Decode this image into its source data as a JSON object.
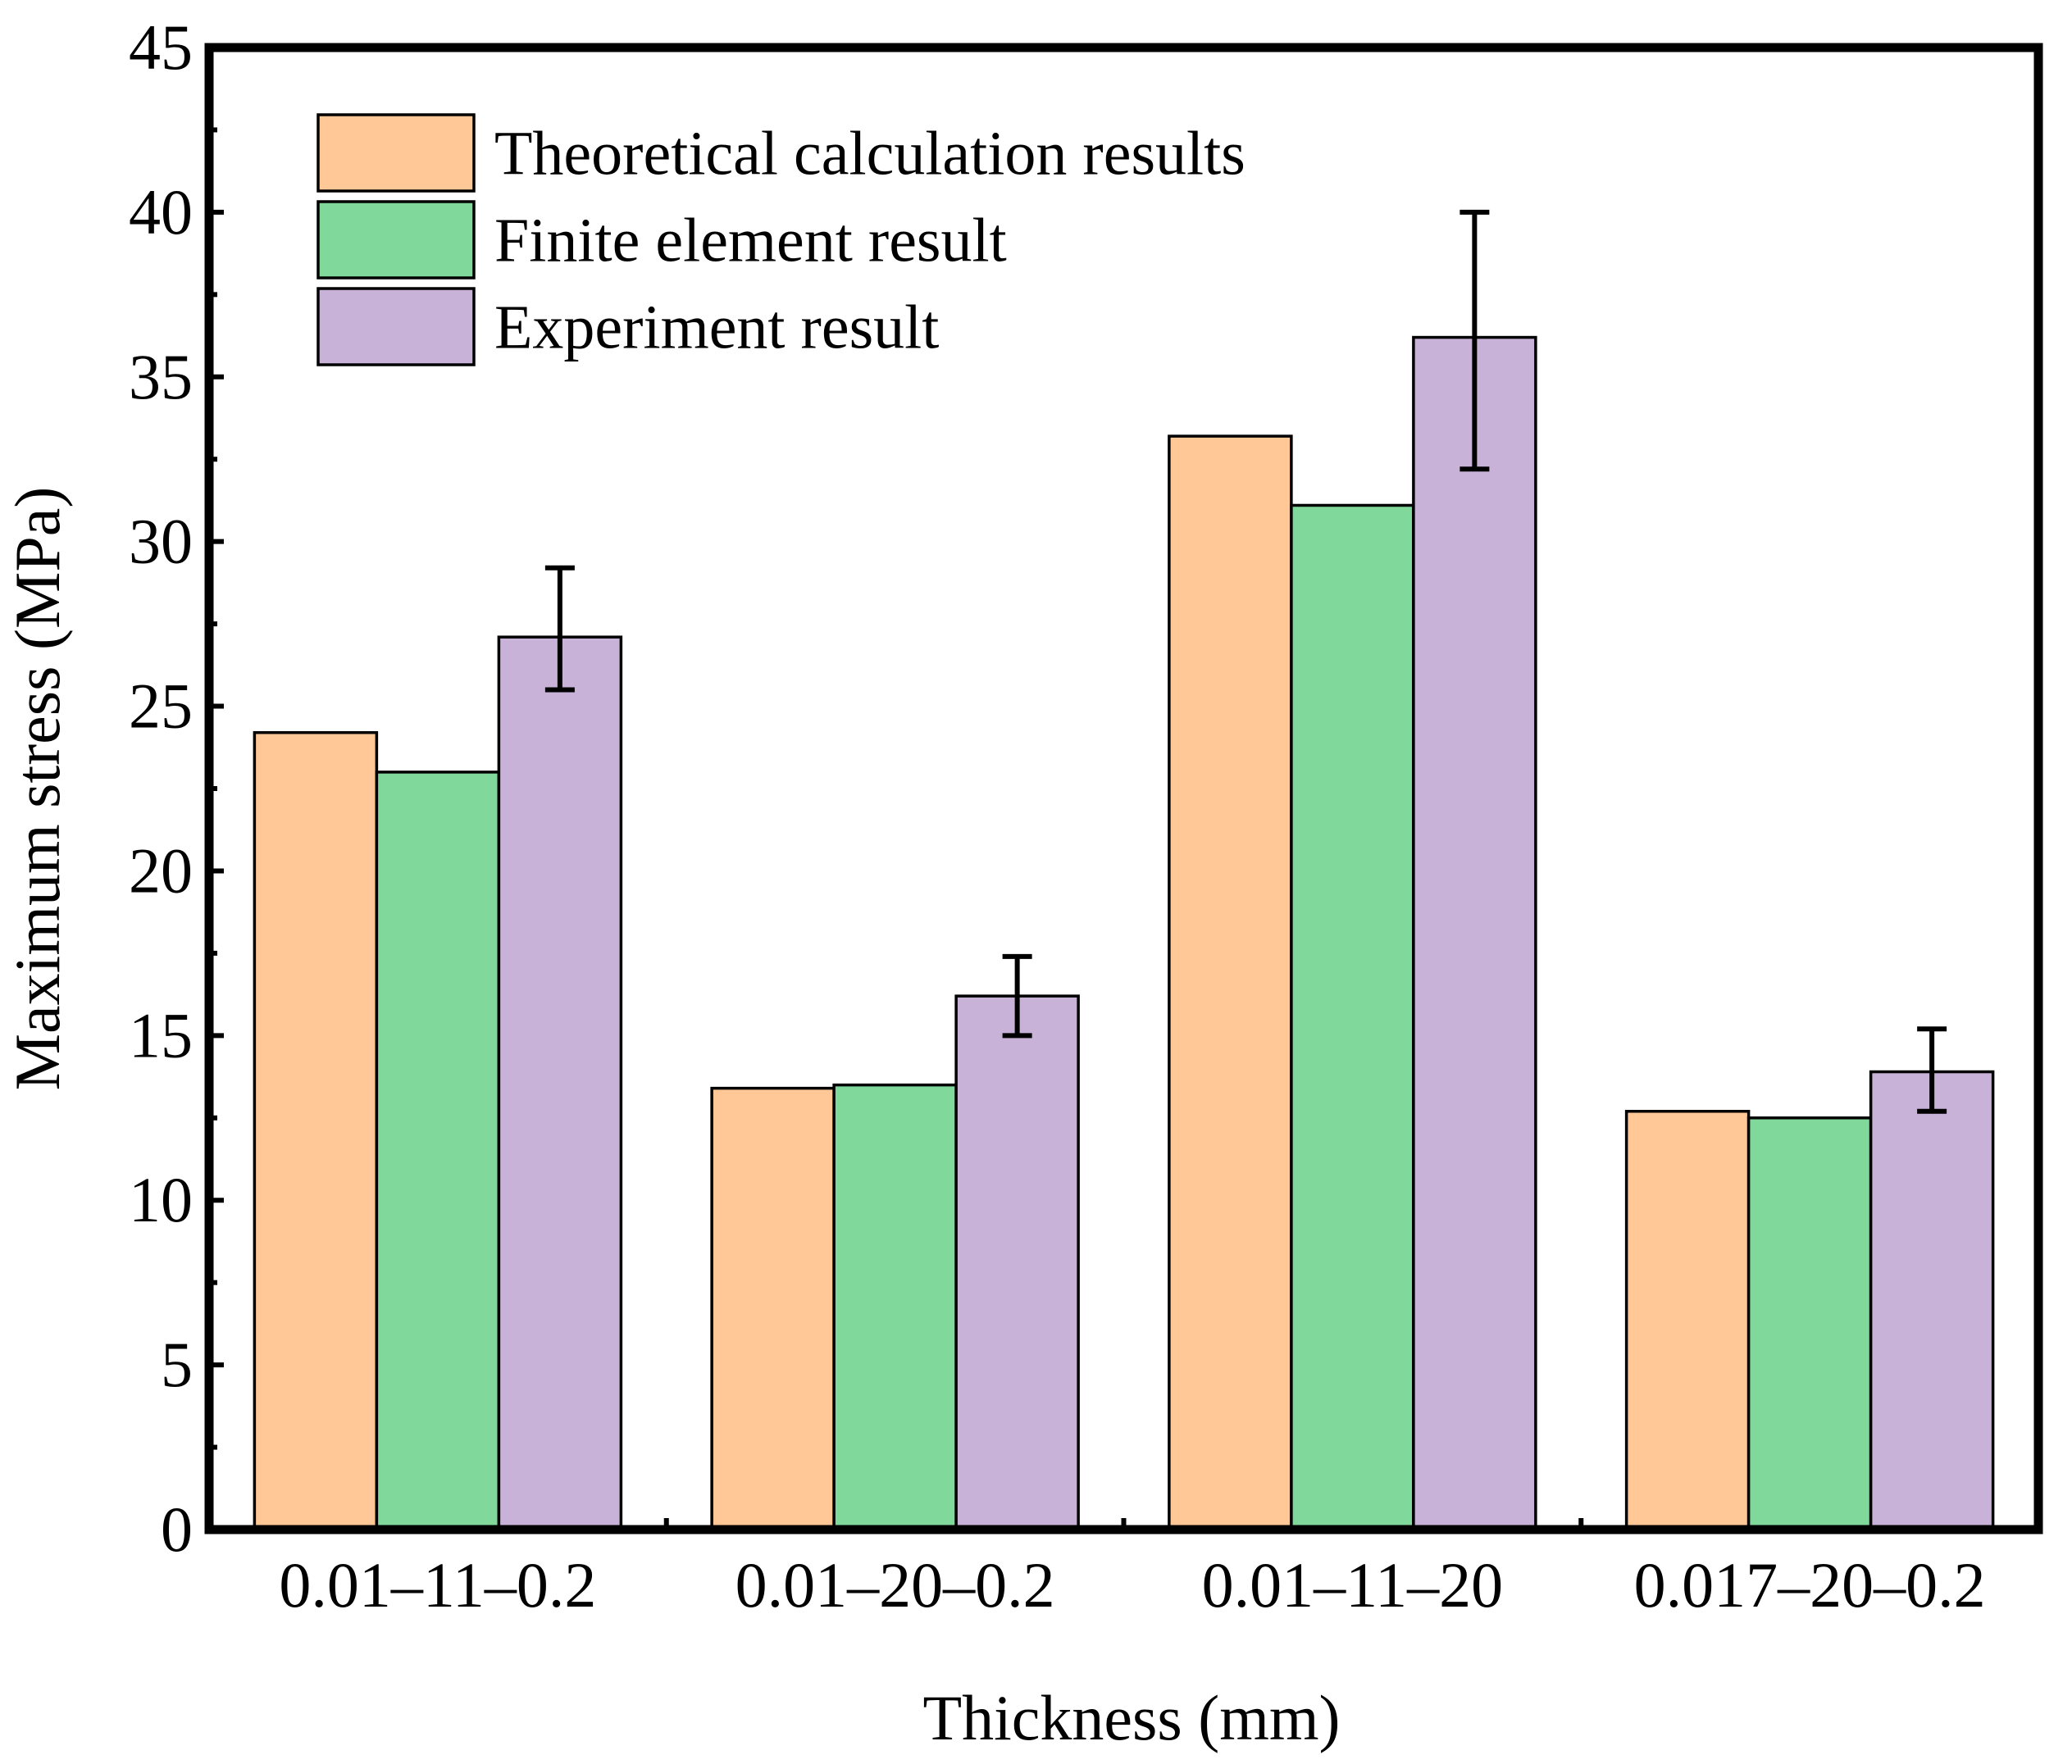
{
  "chart_data": {
    "type": "bar",
    "title": "",
    "xlabel": "Thickness (mm)",
    "ylabel": "Maximum stress (MPa)",
    "ylim": [
      0,
      45
    ],
    "yticks": [
      "0",
      "5",
      "10",
      "15",
      "20",
      "25",
      "30",
      "35",
      "40",
      "45"
    ],
    "categories": [
      "0.01–11–0.2",
      "0.01–20–0.2",
      "0.01–11–20",
      "0.017–20–0.2"
    ],
    "series": [
      {
        "name": "Theoretical calculation results",
        "color": "#FFC896",
        "values": [
          24.2,
          13.4,
          33.2,
          12.7
        ]
      },
      {
        "name": "Finite element result",
        "color": "#80D89A",
        "values": [
          23.0,
          13.5,
          31.1,
          12.5
        ]
      },
      {
        "name": "Experiment result",
        "color": "#C8B2D8",
        "values": [
          27.1,
          16.2,
          36.2,
          13.9
        ],
        "error_low": [
          25.5,
          15.0,
          32.2,
          12.7
        ],
        "error_high": [
          29.2,
          17.4,
          40.0,
          15.2
        ]
      }
    ],
    "legend_position": "top-left",
    "grid": false
  }
}
